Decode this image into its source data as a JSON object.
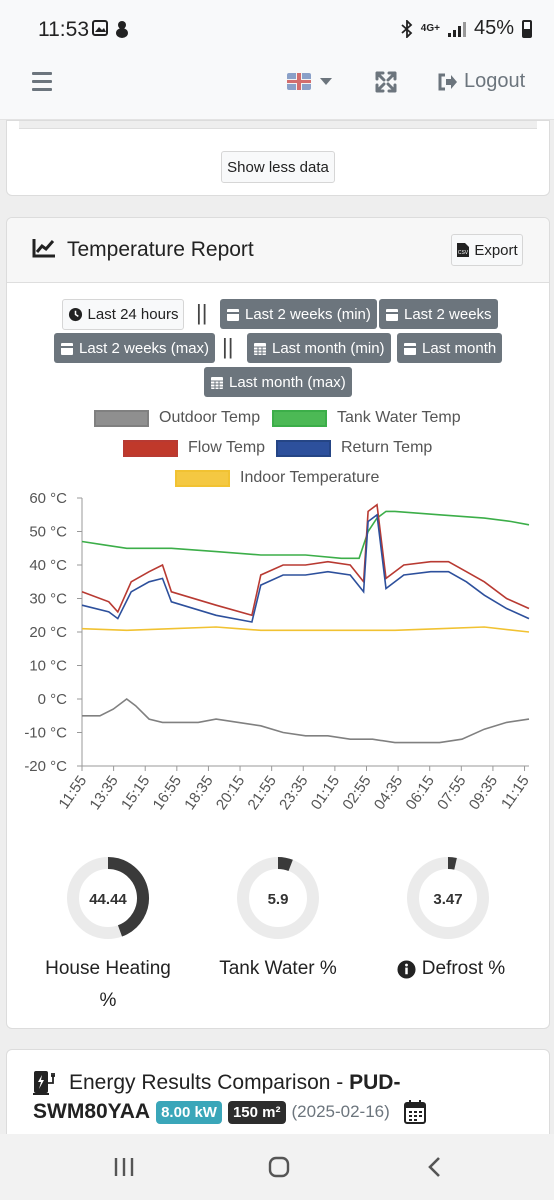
{
  "status_bar": {
    "time": "11:53",
    "network": "4G+",
    "battery": "45%"
  },
  "nav": {
    "logout_label": "Logout"
  },
  "top_card": {
    "show_less_label": "Show less data"
  },
  "temperature_report": {
    "title": "Temperature Report",
    "export_label": "Export",
    "range_buttons": {
      "last_24_hours": "Last 24 hours",
      "last_2_weeks_min": "Last 2 weeks (min)",
      "last_2_weeks": "Last 2 weeks",
      "last_2_weeks_max": "Last 2 weeks (max)",
      "last_month_min": "Last month (min)",
      "last_month": "Last month",
      "last_month_max": "Last month (max)"
    },
    "separator": "||"
  },
  "chart_data": {
    "type": "line",
    "title": "",
    "xlabel": "",
    "ylabel": "",
    "ylim": [
      -20,
      60
    ],
    "y_ticks": [
      "60 °C",
      "50 °C",
      "40 °C",
      "30 °C",
      "20 °C",
      "10 °C",
      "0 °C",
      "-10 °C",
      "-20 °C"
    ],
    "categories": [
      "11:55",
      "13:35",
      "15:15",
      "16:55",
      "18:35",
      "20:15",
      "21:55",
      "23:35",
      "01:15",
      "02:55",
      "04:35",
      "06:15",
      "07:55",
      "09:35",
      "11:15"
    ],
    "legend_placement": "top",
    "grid": false,
    "series": [
      {
        "name": "Outdoor Temp",
        "color": "#808080",
        "points": [
          [
            0,
            -5
          ],
          [
            0.04,
            -5
          ],
          [
            0.07,
            -3
          ],
          [
            0.1,
            0
          ],
          [
            0.12,
            -2
          ],
          [
            0.15,
            -6
          ],
          [
            0.18,
            -7
          ],
          [
            0.22,
            -7
          ],
          [
            0.26,
            -7
          ],
          [
            0.3,
            -6
          ],
          [
            0.35,
            -7
          ],
          [
            0.4,
            -8
          ],
          [
            0.45,
            -10
          ],
          [
            0.5,
            -11
          ],
          [
            0.55,
            -11
          ],
          [
            0.6,
            -12
          ],
          [
            0.65,
            -12
          ],
          [
            0.7,
            -13
          ],
          [
            0.75,
            -13
          ],
          [
            0.8,
            -13
          ],
          [
            0.85,
            -12
          ],
          [
            0.9,
            -9
          ],
          [
            0.95,
            -7
          ],
          [
            1,
            -6
          ]
        ]
      },
      {
        "name": "Tank Water Temp",
        "color": "#3cae49",
        "points": [
          [
            0,
            47
          ],
          [
            0.05,
            46
          ],
          [
            0.1,
            45
          ],
          [
            0.2,
            45
          ],
          [
            0.3,
            44
          ],
          [
            0.4,
            43
          ],
          [
            0.5,
            43
          ],
          [
            0.58,
            42
          ],
          [
            0.62,
            42
          ],
          [
            0.64,
            50
          ],
          [
            0.66,
            54
          ],
          [
            0.68,
            56
          ],
          [
            0.7,
            56
          ],
          [
            0.8,
            55
          ],
          [
            0.9,
            54
          ],
          [
            0.96,
            53
          ],
          [
            1,
            52
          ]
        ]
      },
      {
        "name": "Flow Temp",
        "color": "#b83a32",
        "points": [
          [
            0,
            32
          ],
          [
            0.06,
            29
          ],
          [
            0.08,
            26
          ],
          [
            0.11,
            35
          ],
          [
            0.15,
            38
          ],
          [
            0.18,
            40
          ],
          [
            0.2,
            32
          ],
          [
            0.3,
            28
          ],
          [
            0.38,
            25
          ],
          [
            0.4,
            37
          ],
          [
            0.45,
            40
          ],
          [
            0.5,
            40
          ],
          [
            0.55,
            41
          ],
          [
            0.6,
            40
          ],
          [
            0.63,
            35
          ],
          [
            0.64,
            56
          ],
          [
            0.66,
            58
          ],
          [
            0.68,
            36
          ],
          [
            0.72,
            40
          ],
          [
            0.78,
            41
          ],
          [
            0.82,
            41
          ],
          [
            0.86,
            38
          ],
          [
            0.9,
            35
          ],
          [
            0.95,
            30
          ],
          [
            1,
            27
          ]
        ]
      },
      {
        "name": "Return Temp",
        "color": "#2d509c",
        "points": [
          [
            0,
            28
          ],
          [
            0.06,
            26
          ],
          [
            0.08,
            24
          ],
          [
            0.11,
            32
          ],
          [
            0.15,
            35
          ],
          [
            0.18,
            36
          ],
          [
            0.2,
            29
          ],
          [
            0.3,
            25
          ],
          [
            0.38,
            23
          ],
          [
            0.4,
            34
          ],
          [
            0.45,
            37
          ],
          [
            0.5,
            37
          ],
          [
            0.55,
            38
          ],
          [
            0.6,
            37
          ],
          [
            0.63,
            32
          ],
          [
            0.64,
            53
          ],
          [
            0.66,
            55
          ],
          [
            0.68,
            33
          ],
          [
            0.72,
            37
          ],
          [
            0.78,
            38
          ],
          [
            0.82,
            38
          ],
          [
            0.86,
            35
          ],
          [
            0.9,
            31
          ],
          [
            0.95,
            27
          ],
          [
            1,
            24
          ]
        ]
      },
      {
        "name": "Indoor Temperature",
        "color": "#f1c232",
        "points": [
          [
            0,
            21
          ],
          [
            0.1,
            20.5
          ],
          [
            0.2,
            21
          ],
          [
            0.3,
            21.5
          ],
          [
            0.35,
            21
          ],
          [
            0.4,
            20.5
          ],
          [
            0.5,
            20.5
          ],
          [
            0.6,
            20.5
          ],
          [
            0.7,
            20.5
          ],
          [
            0.8,
            21
          ],
          [
            0.9,
            21.5
          ],
          [
            1,
            20
          ]
        ]
      }
    ]
  },
  "gauges": [
    {
      "value": "44.44",
      "fraction": 0.4444,
      "label": "House Heating %"
    },
    {
      "value": "5.9",
      "fraction": 0.059,
      "label": "Tank Water %"
    },
    {
      "value": "3.47",
      "fraction": 0.0347,
      "label": "Defrost %"
    }
  ],
  "energy_card": {
    "title": "Energy Results Comparison -",
    "model_prefix": "PUD-",
    "model_suffix": "SWM80YAA",
    "power_badge": "8.00 kW",
    "area_badge": "150 m²",
    "date": "(2025-02-16)",
    "colors": {
      "power_badge": "#3aa6b9",
      "area_badge": "#2d2d2d"
    }
  }
}
